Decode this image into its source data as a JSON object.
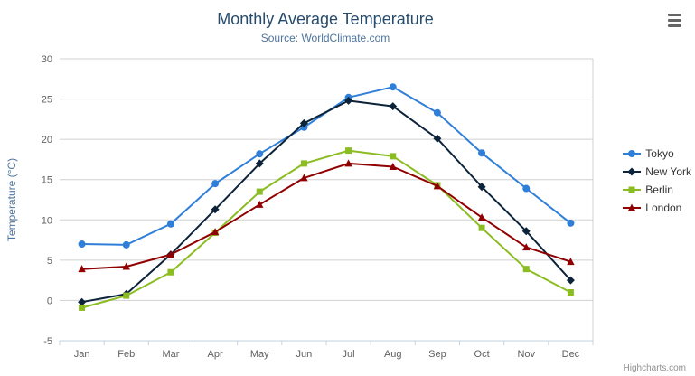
{
  "header": {
    "export_menu_icon": "hamburger-menu-icon"
  },
  "credits": "Highcharts.com",
  "chart_data": {
    "type": "line",
    "title": "Monthly Average Temperature",
    "subtitle": "Source: WorldClimate.com",
    "categories": [
      "Jan",
      "Feb",
      "Mar",
      "Apr",
      "May",
      "Jun",
      "Jul",
      "Aug",
      "Sep",
      "Oct",
      "Nov",
      "Dec"
    ],
    "xlabel": "",
    "ylabel": "Temperature (°C)",
    "ylim": [
      -5,
      30
    ],
    "ytick_interval": 5,
    "grid": true,
    "legend_position": "right",
    "colors": {
      "title": "#274b6d",
      "subtitle": "#4d759e",
      "gridline": "#d0d0d0",
      "axis_line": "#c0d0e0",
      "axis_label": "#606060"
    },
    "series": [
      {
        "name": "Tokyo",
        "color": "#2f7ed8",
        "marker": "circle",
        "values": [
          7.0,
          6.9,
          9.5,
          14.5,
          18.2,
          21.5,
          25.2,
          26.5,
          23.3,
          18.3,
          13.9,
          9.6
        ]
      },
      {
        "name": "New York",
        "color": "#0d233a",
        "marker": "diamond",
        "values": [
          -0.2,
          0.8,
          5.7,
          11.3,
          17.0,
          22.0,
          24.8,
          24.1,
          20.1,
          14.1,
          8.6,
          2.5
        ]
      },
      {
        "name": "Berlin",
        "color": "#8bbc21",
        "marker": "square",
        "values": [
          -0.9,
          0.6,
          3.5,
          8.4,
          13.5,
          17.0,
          18.6,
          17.9,
          14.3,
          9.0,
          3.9,
          1.0
        ]
      },
      {
        "name": "London",
        "color": "#910000",
        "marker": "triangle",
        "values": [
          3.9,
          4.2,
          5.7,
          8.5,
          11.9,
          15.2,
          17.0,
          16.6,
          14.2,
          10.3,
          6.6,
          4.8
        ]
      }
    ]
  }
}
